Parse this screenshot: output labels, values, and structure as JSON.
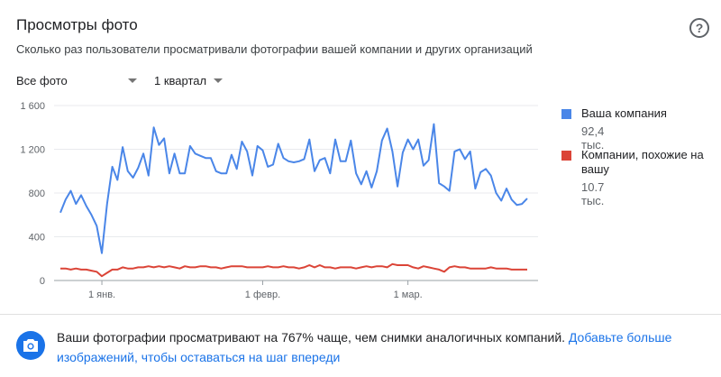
{
  "card": {
    "title": "Просмотры фото",
    "subtitle": "Сколько раз пользователи просматривали фотографии вашей компании и других организаций",
    "help_icon": "help-circle-icon"
  },
  "filters": {
    "photos": "Все фото",
    "period": "1 квартал"
  },
  "colors": {
    "company": "#4a86e8",
    "similar": "#db4437",
    "grid": "#e8eaed",
    "axis_text": "#5f6368",
    "link": "#1a73e8"
  },
  "chart_data": {
    "type": "line",
    "ylim": [
      0,
      1600
    ],
    "yticks": [
      "0",
      "400",
      "800",
      "1 200",
      "1 600"
    ],
    "ytick_values": [
      0,
      400,
      800,
      1200,
      1600
    ],
    "x_ticks": [
      {
        "label": "1 янв.",
        "index": 8
      },
      {
        "label": "1 февр.",
        "index": 39
      },
      {
        "label": "1 мар.",
        "index": 67
      }
    ],
    "grid": true,
    "legend_position": "right",
    "series": [
      {
        "name": "Ваша компания",
        "total": "92,4 тыс.",
        "color": "#4a86e8",
        "values": [
          620,
          740,
          820,
          700,
          780,
          680,
          600,
          500,
          250,
          700,
          1040,
          920,
          1220,
          1000,
          940,
          1030,
          1160,
          960,
          1400,
          1240,
          1300,
          980,
          1160,
          980,
          980,
          1230,
          1160,
          1140,
          1120,
          1120,
          1000,
          980,
          980,
          1150,
          1020,
          1270,
          1180,
          960,
          1230,
          1190,
          1040,
          1060,
          1250,
          1120,
          1090,
          1080,
          1090,
          1110,
          1290,
          1000,
          1100,
          1120,
          980,
          1290,
          1090,
          1090,
          1280,
          980,
          880,
          1000,
          850,
          1000,
          1280,
          1390,
          1180,
          860,
          1170,
          1290,
          1200,
          1290,
          1050,
          1100,
          1430,
          890,
          860,
          820,
          1180,
          1200,
          1110,
          1180,
          840,
          990,
          1020,
          960,
          800,
          730,
          840,
          740,
          690,
          700,
          750
        ],
        "x_start_index": 0
      },
      {
        "name": "Компании, похожие на вашу",
        "total": "10.7 тыс.",
        "color": "#db4437",
        "values": [
          110,
          110,
          100,
          110,
          100,
          100,
          90,
          80,
          40,
          70,
          100,
          100,
          120,
          110,
          110,
          120,
          120,
          130,
          120,
          130,
          120,
          130,
          120,
          110,
          130,
          120,
          120,
          130,
          130,
          120,
          120,
          110,
          120,
          130,
          130,
          130,
          120,
          120,
          120,
          120,
          130,
          120,
          120,
          130,
          120,
          120,
          110,
          120,
          140,
          120,
          140,
          120,
          120,
          110,
          120,
          120,
          120,
          110,
          120,
          130,
          120,
          130,
          130,
          120,
          150,
          140,
          140,
          140,
          120,
          110,
          130,
          120,
          110,
          100,
          80,
          120,
          130,
          120,
          120,
          110,
          110,
          110,
          110,
          120,
          110,
          110,
          110,
          100,
          100,
          100,
          100
        ],
        "x_start_index": 0
      }
    ]
  },
  "tip": {
    "icon": "camera-icon",
    "text": "Ваши фотографии просматривают на 767% чаще, чем снимки аналогичных компаний. ",
    "link": "Добавьте больше изображений, чтобы оставаться на шаг впереди"
  }
}
